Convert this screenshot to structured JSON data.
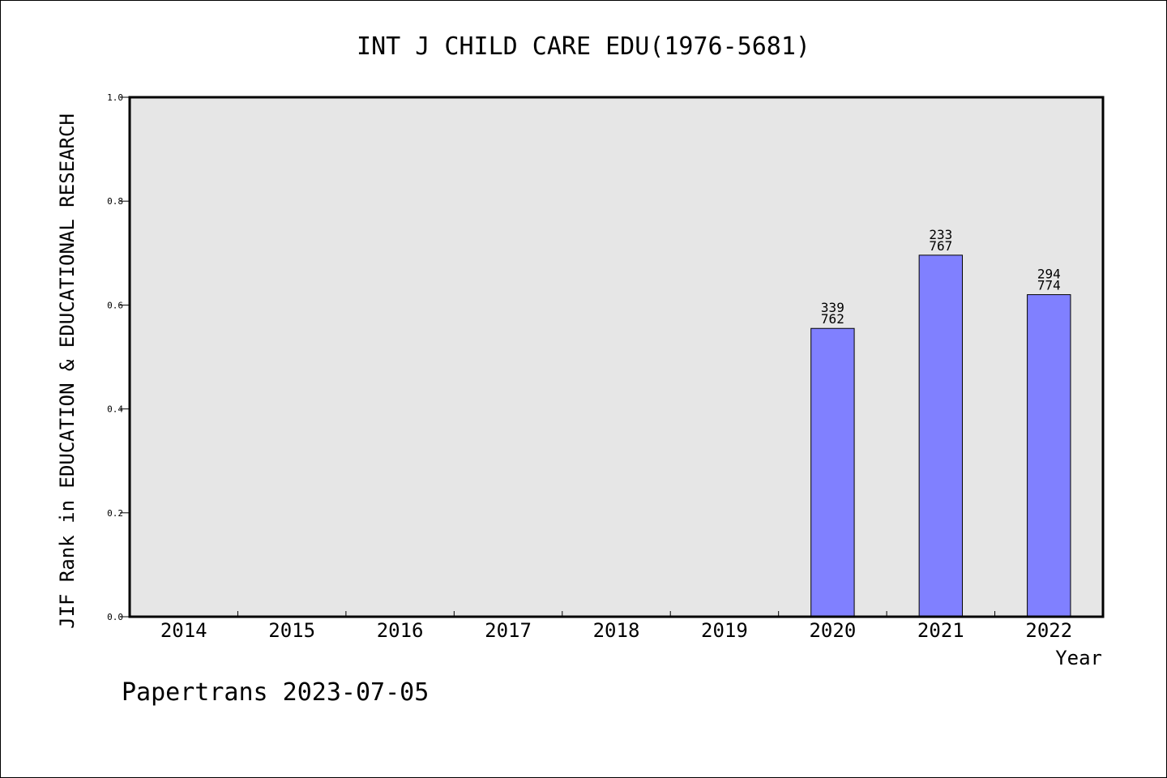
{
  "chart_data": {
    "type": "bar",
    "title": "INT J CHILD CARE EDU(1976-5681)",
    "xlabel": "Year",
    "ylabel": "JIF Rank in EDUCATION & EDUCATIONAL RESEARCH",
    "ylim": [
      0.0,
      1.0
    ],
    "yticks": [
      "0.0",
      "0.2",
      "0.4",
      "0.6",
      "0.8",
      "1.0"
    ],
    "categories": [
      "2014",
      "2015",
      "2016",
      "2017",
      "2018",
      "2019",
      "2020",
      "2021",
      "2022"
    ],
    "values": [
      null,
      null,
      null,
      null,
      null,
      null,
      0.555,
      0.696,
      0.62
    ],
    "bar_labels": [
      null,
      null,
      null,
      null,
      null,
      null,
      [
        "339",
        "762"
      ],
      [
        "233",
        "767"
      ],
      [
        "294",
        "774"
      ]
    ],
    "bar_color": "#8080ff",
    "plot_background": "#e6e6e6",
    "grid": false,
    "legend": "none"
  },
  "footer": "Papertrans 2023-07-05"
}
